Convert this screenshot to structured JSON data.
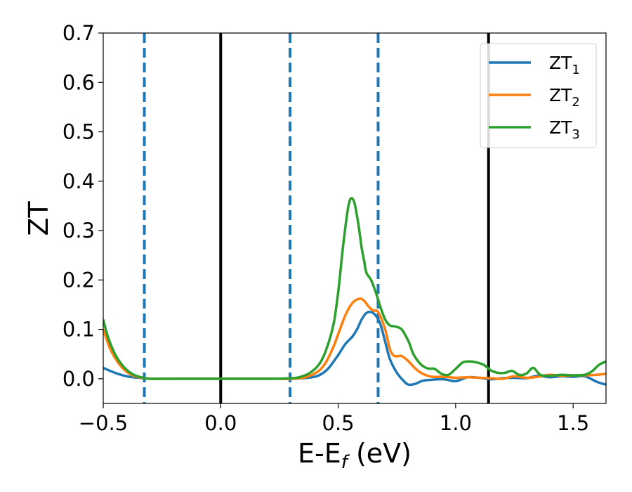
{
  "chart_data": {
    "type": "line",
    "xlabel": "E-E",
    "xlabel_sub": "f",
    "xlabel_unit": " (eV)",
    "ylabel": "ZT",
    "xlim": [
      -0.5,
      1.64
    ],
    "ylim": [
      -0.05,
      0.7
    ],
    "xticks": [
      -0.5,
      0.0,
      0.5,
      1.0,
      1.5
    ],
    "xtick_labels": [
      "−0.5",
      "0.0",
      "0.5",
      "1.0",
      "1.5"
    ],
    "yticks": [
      0.0,
      0.1,
      0.2,
      0.3,
      0.4,
      0.5,
      0.6,
      0.7
    ],
    "ytick_labels": [
      "0.0",
      "0.1",
      "0.2",
      "0.3",
      "0.4",
      "0.5",
      "0.6",
      "0.7"
    ],
    "grid": false,
    "legend_position": "top-right",
    "vlines": [
      {
        "x": -0.325,
        "style": "dashed",
        "color": "#1f77b4"
      },
      {
        "x": 0.0,
        "style": "solid",
        "color": "#000000"
      },
      {
        "x": 0.295,
        "style": "dashed",
        "color": "#1f77b4"
      },
      {
        "x": 0.67,
        "style": "dashed",
        "color": "#1f77b4"
      },
      {
        "x": 1.14,
        "style": "solid",
        "color": "#000000"
      }
    ],
    "series": [
      {
        "name": "ZT",
        "sub": "1",
        "color": "#1f77b4",
        "x": [
          -0.5,
          -0.45,
          -0.4,
          -0.35,
          -0.3,
          -0.2,
          0.0,
          0.2,
          0.3,
          0.35,
          0.4,
          0.43,
          0.46,
          0.5,
          0.53,
          0.56,
          0.58,
          0.6,
          0.62,
          0.64,
          0.66,
          0.68,
          0.7,
          0.72,
          0.75,
          0.78,
          0.8,
          0.83,
          0.86,
          0.9,
          0.95,
          1.0,
          1.05,
          1.1,
          1.15,
          1.2,
          1.25,
          1.3,
          1.35,
          1.4,
          1.45,
          1.5,
          1.55,
          1.6,
          1.64
        ],
        "y": [
          0.022,
          0.012,
          0.005,
          0.002,
          0.0,
          0.0,
          0.0,
          0.0,
          0.0,
          0.001,
          0.004,
          0.01,
          0.022,
          0.048,
          0.07,
          0.085,
          0.1,
          0.12,
          0.133,
          0.135,
          0.128,
          0.11,
          0.075,
          0.04,
          0.012,
          -0.005,
          -0.012,
          -0.01,
          -0.004,
          -0.002,
          -0.001,
          -0.005,
          0.003,
          0.002,
          -0.001,
          0.001,
          0.002,
          0.001,
          0.006,
          0.003,
          0.005,
          0.004,
          0.005,
          -0.006,
          -0.012
        ]
      },
      {
        "name": "ZT",
        "sub": "2",
        "color": "#ff7f0e",
        "x": [
          -0.5,
          -0.47,
          -0.44,
          -0.41,
          -0.38,
          -0.35,
          -0.3,
          -0.2,
          0.0,
          0.2,
          0.3,
          0.35,
          0.38,
          0.42,
          0.45,
          0.48,
          0.5,
          0.53,
          0.56,
          0.59,
          0.61,
          0.63,
          0.65,
          0.67,
          0.7,
          0.72,
          0.74,
          0.77,
          0.8,
          0.83,
          0.86,
          0.9,
          0.95,
          1.0,
          1.05,
          1.1,
          1.15,
          1.2,
          1.25,
          1.3,
          1.35,
          1.4,
          1.45,
          1.5,
          1.55,
          1.6,
          1.64
        ],
        "y": [
          0.1,
          0.06,
          0.035,
          0.018,
          0.008,
          0.003,
          0.0,
          0.0,
          0.0,
          0.0,
          0.0,
          0.002,
          0.006,
          0.017,
          0.035,
          0.065,
          0.09,
          0.128,
          0.153,
          0.162,
          0.158,
          0.146,
          0.138,
          0.135,
          0.1,
          0.06,
          0.046,
          0.046,
          0.035,
          0.02,
          0.01,
          0.004,
          0.004,
          0.002,
          0.003,
          0.002,
          0.001,
          0.0,
          0.005,
          0.002,
          0.004,
          0.008,
          0.006,
          0.007,
          0.007,
          0.008,
          0.01
        ]
      },
      {
        "name": "ZT",
        "sub": "3",
        "color": "#2ca02c",
        "x": [
          -0.5,
          -0.48,
          -0.45,
          -0.42,
          -0.39,
          -0.36,
          -0.33,
          -0.3,
          -0.2,
          0.0,
          0.2,
          0.3,
          0.34,
          0.38,
          0.42,
          0.45,
          0.48,
          0.5,
          0.52,
          0.54,
          0.55,
          0.56,
          0.57,
          0.58,
          0.59,
          0.6,
          0.61,
          0.62,
          0.64,
          0.66,
          0.68,
          0.7,
          0.72,
          0.74,
          0.77,
          0.8,
          0.82,
          0.85,
          0.88,
          0.91,
          0.94,
          0.97,
          1.0,
          1.03,
          1.06,
          1.09,
          1.12,
          1.15,
          1.18,
          1.21,
          1.24,
          1.27,
          1.3,
          1.33,
          1.36,
          1.4,
          1.45,
          1.5,
          1.55,
          1.58,
          1.61,
          1.64
        ],
        "y": [
          0.12,
          0.085,
          0.05,
          0.028,
          0.014,
          0.006,
          0.002,
          0.0,
          0.0,
          0.0,
          0.0,
          0.001,
          0.004,
          0.012,
          0.03,
          0.06,
          0.11,
          0.175,
          0.265,
          0.34,
          0.362,
          0.365,
          0.355,
          0.33,
          0.3,
          0.265,
          0.24,
          0.215,
          0.2,
          0.175,
          0.145,
          0.12,
          0.108,
          0.106,
          0.1,
          0.075,
          0.05,
          0.03,
          0.021,
          0.02,
          0.01,
          0.008,
          0.02,
          0.033,
          0.035,
          0.033,
          0.028,
          0.017,
          0.012,
          0.012,
          0.016,
          0.008,
          0.01,
          0.022,
          0.008,
          0.006,
          0.008,
          0.007,
          0.008,
          0.015,
          0.028,
          0.035
        ]
      }
    ]
  }
}
